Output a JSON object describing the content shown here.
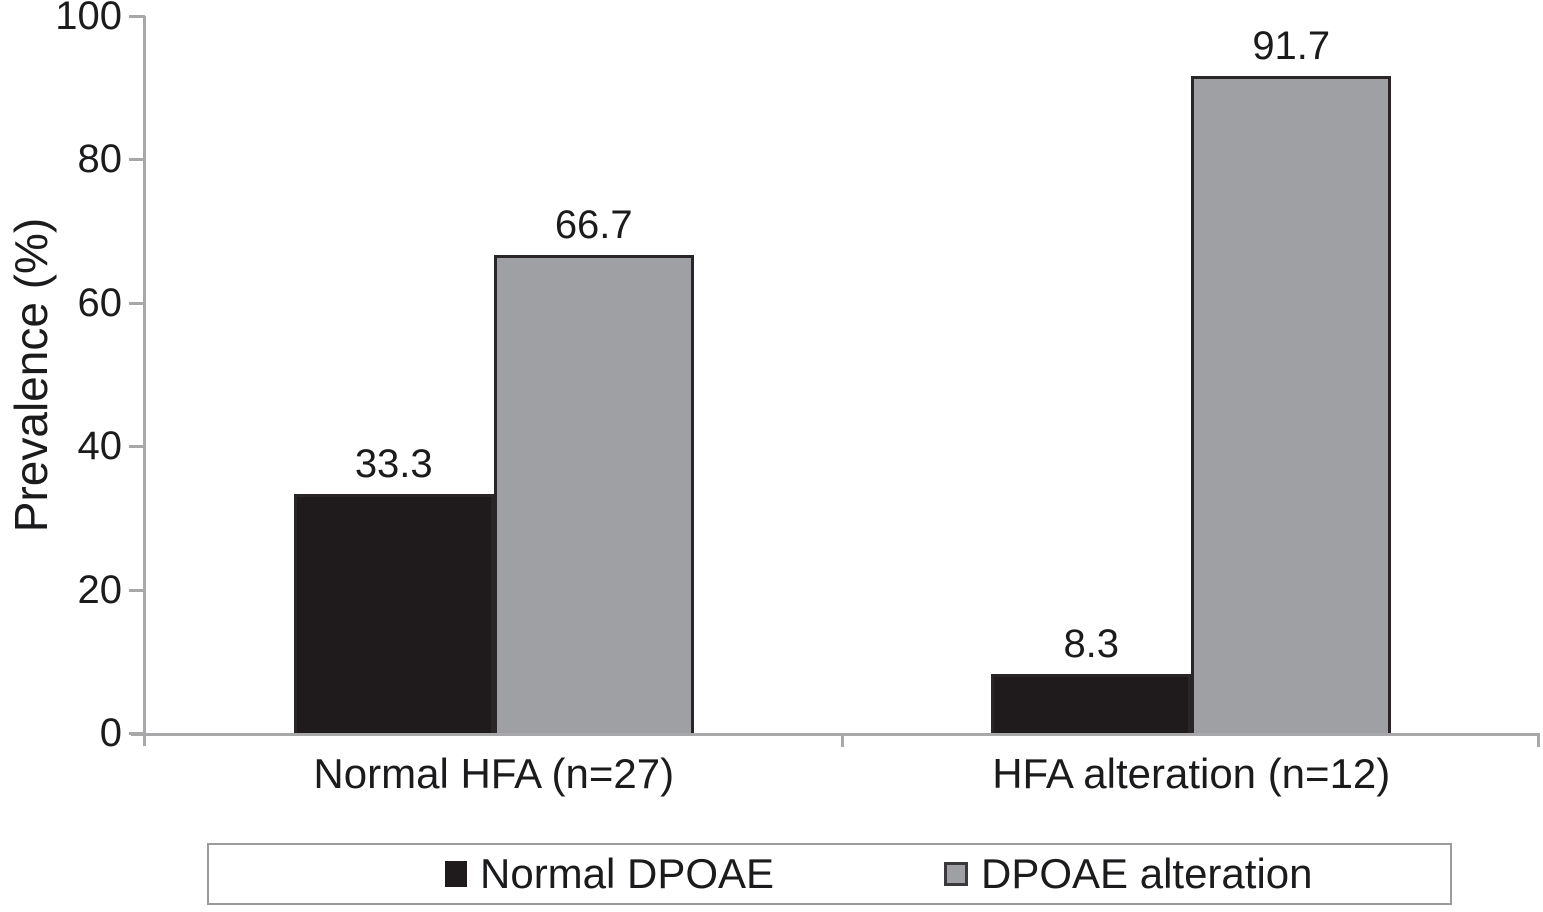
{
  "chart_data": {
    "type": "bar",
    "title": "",
    "ylabel": "Prevalence (%)",
    "xlabel": "",
    "ylim": [
      0,
      100
    ],
    "yticks": [
      0,
      20,
      40,
      60,
      80,
      100
    ],
    "grid": false,
    "legend_position": "bottom-box",
    "categories": [
      "Normal HFA (n=27)",
      "HFA alteration (n=12)"
    ],
    "series": [
      {
        "name": "Normal DPOAE",
        "color": "#1f1b1c",
        "values": [
          33.3,
          8.3
        ],
        "labels": [
          "33.3",
          "8.3"
        ]
      },
      {
        "name": "DPOAE alteration",
        "color": "#9fa0a4",
        "values": [
          66.7,
          91.7
        ],
        "labels": [
          "66.7",
          "91.7"
        ]
      }
    ]
  },
  "colors": {
    "background": "#ffffff",
    "axis": "#a8a8ab",
    "bar_border": "#2a2627",
    "text": "#1b1b1d",
    "legend_border": "#9b9b9b"
  }
}
